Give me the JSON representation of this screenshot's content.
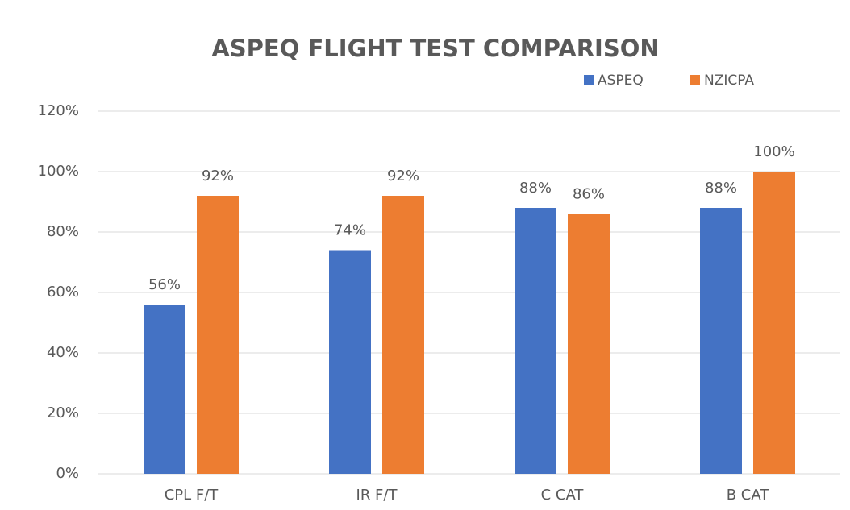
{
  "chart_data": {
    "type": "bar",
    "title": "ASPEQ FLIGHT TEST COMPARISON",
    "categories": [
      "CPL F/T",
      "IR F/T",
      "C CAT",
      "B CAT"
    ],
    "series": [
      {
        "name": "ASPEQ",
        "color": "#4472c4",
        "values": [
          56,
          74,
          88,
          88
        ],
        "value_labels": [
          "56%",
          "74%",
          "88%",
          "88%"
        ]
      },
      {
        "name": "NZICPA",
        "color": "#ed7d31",
        "values": [
          92,
          92,
          86,
          100
        ],
        "value_labels": [
          "92%",
          "92%",
          "86%",
          "100%"
        ]
      }
    ],
    "ylim": [
      0,
      120
    ],
    "yticks": [
      {
        "value": 0,
        "label": "0%"
      },
      {
        "value": 20,
        "label": "20%"
      },
      {
        "value": 40,
        "label": "40%"
      },
      {
        "value": 60,
        "label": "60%"
      },
      {
        "value": 80,
        "label": "80%"
      },
      {
        "value": 100,
        "label": "100%"
      },
      {
        "value": 120,
        "label": "120%"
      }
    ],
    "grid": true,
    "legend": "top-right"
  }
}
